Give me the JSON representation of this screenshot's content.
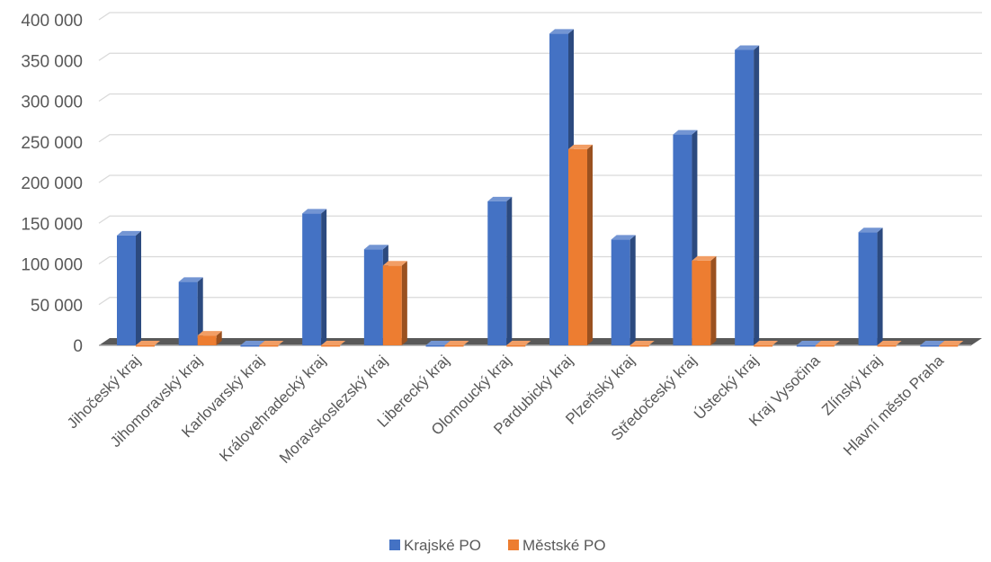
{
  "chart_data": {
    "type": "bar",
    "categories": [
      "Jihočeský kraj",
      "Jihomoravský kraj",
      "Karlovarský kraj",
      "Královehradecký kraj",
      "Moravskoslezský kraj",
      "Liberecký kraj",
      "Olomoucký kraj",
      "Pardubický kraj",
      "Plzeňský kraj",
      "Středočeský kraj",
      "Ústecký kraj",
      "Kraj Vysočina",
      "Zlínský kraj",
      "Hlavní město Praha"
    ],
    "series": [
      {
        "name": "Krajské PO",
        "color": "#4472C4",
        "values": [
          135000,
          78000,
          0,
          162000,
          118000,
          0,
          177000,
          383000,
          130000,
          259000,
          363000,
          0,
          139000,
          0
        ]
      },
      {
        "name": "Městské PO",
        "color": "#ED7D31",
        "values": [
          0,
          12000,
          0,
          0,
          98000,
          0,
          0,
          241000,
          0,
          104000,
          0,
          0,
          0,
          0
        ]
      }
    ],
    "y_ticks": [
      "0",
      "50 000",
      "100 000",
      "150 000",
      "200 000",
      "250 000",
      "300 000",
      "350 000",
      "400 000"
    ],
    "ylim": [
      0,
      400000
    ],
    "grid": true,
    "legend_position": "bottom",
    "style": "3d-clustered-column"
  }
}
